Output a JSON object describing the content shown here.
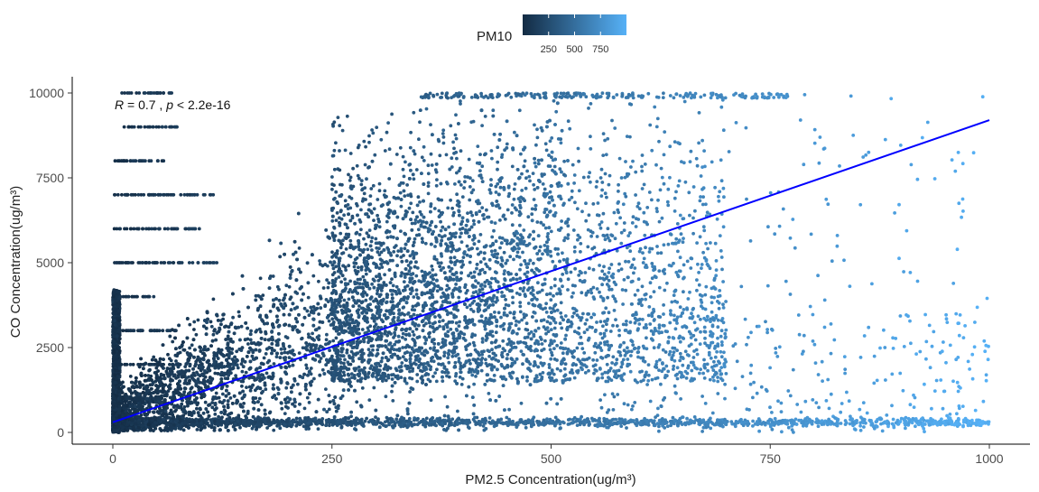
{
  "chart_data": {
    "type": "scatter",
    "xlabel": "PM2.5 Concentration(ug/m³)",
    "ylabel": "CO Concentration(ug/m³)",
    "xlim": [
      0,
      1000
    ],
    "ylim": [
      0,
      10000
    ],
    "x_ticks": [
      "0",
      "250",
      "500",
      "750",
      "1000"
    ],
    "x_tick_values": [
      0,
      250,
      500,
      750,
      1000
    ],
    "y_ticks": [
      "0",
      "2500",
      "5000",
      "7500",
      "10000"
    ],
    "y_tick_values": [
      0,
      2500,
      5000,
      7500,
      10000
    ],
    "grid": false,
    "legend": {
      "placement": "top",
      "title": "PM10",
      "tick_labels": [
        "250",
        "500",
        "750"
      ],
      "tick_values": [
        250,
        500,
        750
      ],
      "range": [
        0,
        1000
      ],
      "color_low": "#132B43",
      "color_high": "#56B1F7"
    },
    "annotation": {
      "r_label": "R",
      "r_text": " = 0.7 , ",
      "p_label": "p",
      "p_text": " < 2.2e-16",
      "x": 0,
      "y": 9650
    },
    "fit_line": {
      "color": "#0000FF",
      "points": [
        [
          0,
          300
        ],
        [
          1000,
          9200
        ]
      ]
    },
    "point_cloud": {
      "x_range": [
        0,
        1000
      ],
      "y_range": [
        0,
        10000
      ],
      "trend_intercept": 300,
      "trend_slope": 8.9,
      "stripes_y": [
        1000,
        2000,
        3000,
        4000,
        5000,
        6000,
        7000,
        8000,
        9000,
        10000
      ],
      "dense_bottom_y": 300
    }
  }
}
